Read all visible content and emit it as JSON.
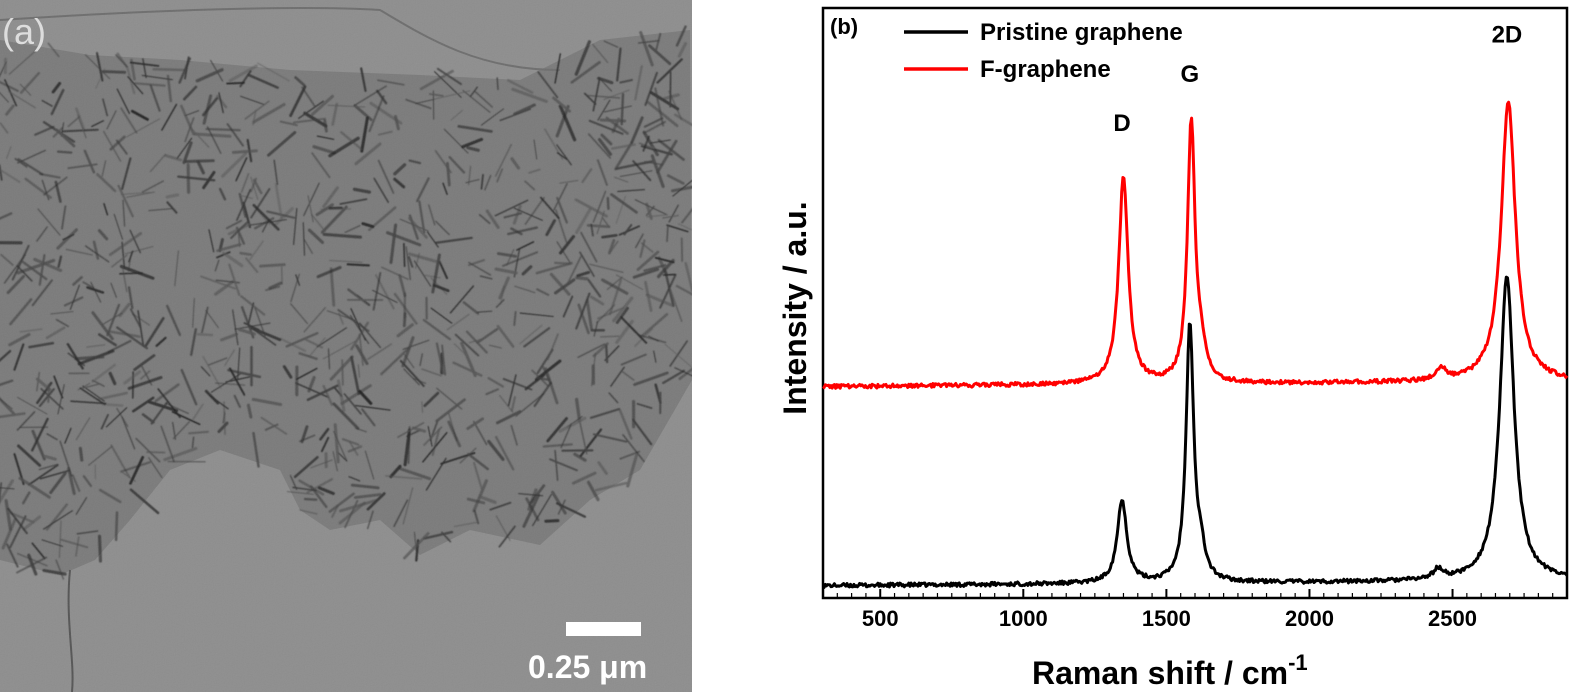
{
  "panel_a": {
    "label": "(a)",
    "scale_bar": {
      "text": "0.25 μm"
    },
    "colors": {
      "background": "#8e8e8e",
      "flakes": "#3a3a3a",
      "scale_bar": "#ffffff"
    }
  },
  "chart_data": {
    "type": "line",
    "panel_label": "(b)",
    "xlabel": "Raman shift / cm",
    "xlabel_superscript": "-1",
    "ylabel": "Intensity / a.u.",
    "xlim": [
      300,
      2900
    ],
    "x_ticks": [
      500,
      1000,
      1500,
      2000,
      2500
    ],
    "x_tick_labels": [
      "500",
      "1000",
      "1500",
      "2000",
      "2500"
    ],
    "y_ticks_shown": false,
    "ylim": [
      0,
      1
    ],
    "legend_placement": "top-left",
    "series": [
      {
        "name": "Pristine graphene",
        "color": "#000000",
        "baseline": 0.025,
        "peaks": [
          {
            "label": "",
            "center": 1345,
            "height": 0.17,
            "width": 20
          },
          {
            "label": "",
            "center": 1582,
            "height": 0.525,
            "width": 16
          },
          {
            "label": "",
            "center": 1620,
            "height": 0.05,
            "width": 18
          },
          {
            "label": "",
            "center": 2450,
            "height": 0.02,
            "width": 20
          },
          {
            "label": "",
            "center": 2690,
            "height": 0.62,
            "width": 30
          }
        ]
      },
      {
        "name": "F-graphene",
        "color": "#ff0000",
        "baseline": 0.43,
        "peaks": [
          {
            "label": "",
            "center": 1350,
            "height": 0.42,
            "width": 20
          },
          {
            "label": "",
            "center": 1587,
            "height": 0.53,
            "width": 16
          },
          {
            "label": "",
            "center": 1622,
            "height": 0.05,
            "width": 18
          },
          {
            "label": "",
            "center": 2460,
            "height": 0.025,
            "width": 20
          },
          {
            "label": "",
            "center": 2695,
            "height": 0.57,
            "width": 30
          }
        ]
      }
    ],
    "annotations": [
      {
        "text": "D",
        "x": 1345,
        "y": 0.95
      },
      {
        "text": "G",
        "x": 1582,
        "y": 1.05
      },
      {
        "text": "2D",
        "x": 2690,
        "y": 1.13
      }
    ]
  }
}
